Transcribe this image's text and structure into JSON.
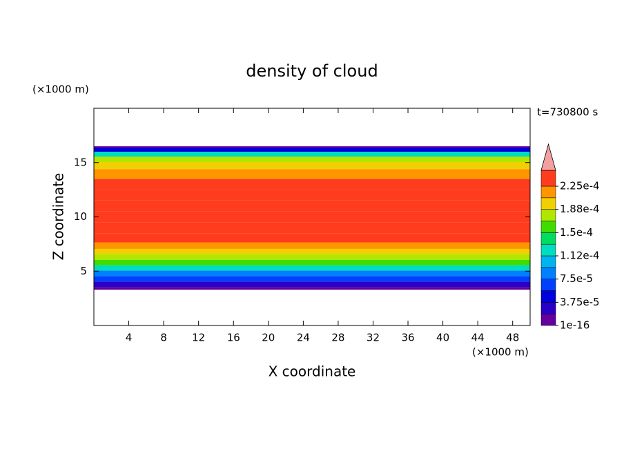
{
  "chart_data": {
    "type": "contour",
    "title": "density of cloud",
    "x_label": "X coordinate",
    "y_label": "Z coordinate",
    "x_unit": "(×1000 m)",
    "y_unit": "(×1000 m)",
    "time_label": "t=730800 s",
    "xlim": [
      0,
      50
    ],
    "ylim": [
      0,
      20
    ],
    "xticks": [
      4,
      8,
      12,
      16,
      20,
      24,
      28,
      32,
      36,
      40,
      44,
      48
    ],
    "yticks": [
      5,
      10,
      15
    ],
    "z": [
      3.3,
      3.8,
      4.3,
      4.8,
      5.3,
      5.8,
      6.3,
      6.8,
      7.3,
      8,
      9,
      10,
      11,
      12,
      13,
      14,
      14.8,
      15.3,
      15.8,
      16.2,
      16.5
    ],
    "values": [
      1e-05,
      3e-05,
      6e-05,
      9e-05,
      0.00012,
      0.00015,
      0.00018,
      0.0002,
      0.000215,
      0.00023,
      0.000235,
      0.00024,
      0.00024,
      0.000235,
      0.00023,
      0.00022,
      0.0002,
      0.00017,
      0.00012,
      5e-05,
      1e-05
    ],
    "levels": [
      1e-16,
      1.875e-05,
      3.75e-05,
      5.625e-05,
      7.5e-05,
      9.375e-05,
      0.0001125,
      0.00013125,
      0.00015,
      0.00016875,
      0.0001875,
      0.00020625,
      0.000225
    ],
    "colors": [
      "#6400a0",
      "#2800c8",
      "#0000dc",
      "#0040ff",
      "#0080ff",
      "#00b4f0",
      "#00dcc0",
      "#00dc60",
      "#40dc00",
      "#b0e600",
      "#f0d000",
      "#ff9600",
      "#ff3c1e"
    ],
    "extend_color": "#f4a0a0",
    "colorbar_ticks": [
      1e-16,
      {
        "value": 3.75e-05,
        "label": "3.75e-5"
      },
      {
        "value": 7.5e-05,
        "label": "7.5e-5"
      },
      {
        "value": 0.0001125,
        "label": "1.12e-4"
      },
      {
        "value": 0.00015,
        "label": "1.5e-4"
      },
      {
        "value": 0.0001875,
        "label": "1.88e-4"
      },
      {
        "value": 0.000225,
        "label": "2.25e-4"
      }
    ]
  }
}
